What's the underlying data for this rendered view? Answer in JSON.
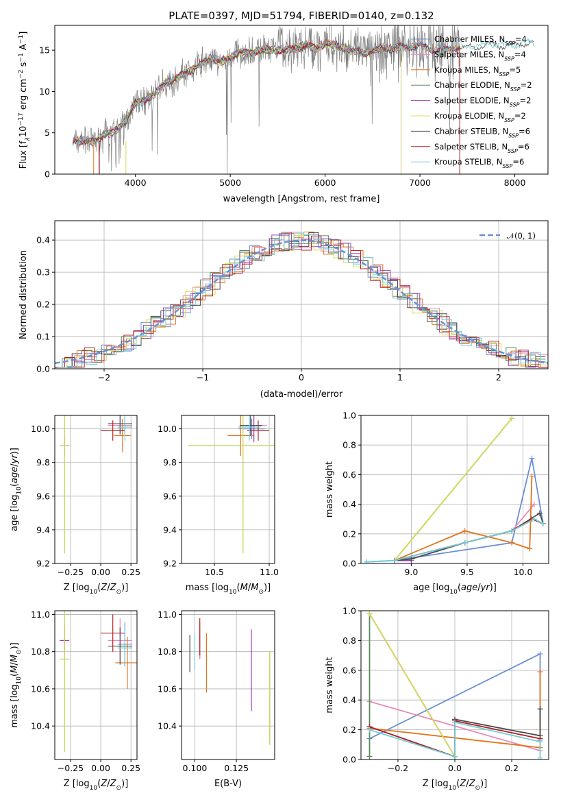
{
  "figure": {
    "title": "PLATE=0397, MJD=51794, FIBERID=0140, z=0.132"
  },
  "colors": {
    "chabrier_miles": "#6a8fd8",
    "salpeter_miles": "#e88ab8",
    "kroupa_miles": "#e0751e",
    "chabrier_elodie": "#5a8a5a",
    "salpeter_elodie": "#9b3fb0",
    "kroupa_elodie": "#d8dc55",
    "chabrier_stelib": "#4a4a4a",
    "salpeter_stelib": "#b22020",
    "kroupa_stelib": "#70cdd8",
    "data": "#808080",
    "normal": "#6a8fd8"
  },
  "chart_data": [
    {
      "type": "line",
      "id": "spectrum",
      "xlabel": "wavelength [Angstrom, rest frame]",
      "ylabel": "Flux [f",
      "ylabel_full": "Flux [fλ10−17 erg cm−2 s−1 A−1]",
      "xlim": [
        3150,
        8350
      ],
      "ylim": [
        0,
        18
      ],
      "xticks": [
        4000,
        5000,
        6000,
        7000,
        8000
      ],
      "yticks": [
        0,
        5,
        10,
        15
      ],
      "continuum": {
        "x": [
          3340,
          3450,
          3550,
          3650,
          3750,
          3850,
          3920,
          4000,
          4100,
          4200,
          4300,
          4400,
          4500,
          4600,
          4700,
          4800,
          4900,
          5000,
          5100,
          5200,
          5300,
          5400,
          5500,
          5600,
          5700,
          5800,
          5900,
          6000,
          6100,
          6200,
          6300,
          6400,
          6500,
          6600,
          6700,
          6800,
          6900,
          7000,
          7100,
          7200,
          7300,
          7400,
          7500,
          7600,
          7700,
          7800,
          7900,
          8000,
          8100,
          8200
        ],
        "y": [
          4.0,
          4.1,
          3.9,
          4.6,
          5.0,
          5.8,
          6.8,
          8.6,
          9.0,
          9.6,
          11.0,
          11.3,
          12.2,
          12.6,
          13.4,
          14.0,
          13.6,
          14.0,
          14.8,
          14.6,
          15.0,
          15.0,
          15.0,
          15.0,
          15.3,
          15.6,
          15.2,
          15.8,
          15.6,
          15.2,
          15.0,
          14.6,
          15.0,
          15.2,
          15.2,
          15.4,
          15.4,
          15.5,
          15.2,
          15.1,
          15.2,
          15.3,
          15.5,
          15.4,
          15.6,
          15.7,
          15.5,
          15.6,
          15.9,
          15.8
        ]
      },
      "model_ends": {
        "chabrier_miles": 7420,
        "salpeter_miles": 7420,
        "kroupa_miles": 7420,
        "chabrier_elodie": 6800,
        "salpeter_elodie": 6800,
        "kroupa_elodie": 6800,
        "chabrier_stelib": 8200,
        "salpeter_stelib": 7420,
        "kroupa_stelib": 8200
      },
      "legend": [
        {
          "key": "chabrier_miles",
          "label": "Chabrier MILES, N",
          "sub": "SSP",
          "suffix": "=4"
        },
        {
          "key": "salpeter_miles",
          "label": "Salpeter MILES, N",
          "sub": "SSP",
          "suffix": "=4"
        },
        {
          "key": "kroupa_miles",
          "label": "Kroupa MILES, N",
          "sub": "SSP",
          "suffix": "=5"
        },
        {
          "key": "chabrier_elodie",
          "label": "Chabrier ELODIE, N",
          "sub": "SSP",
          "suffix": "=2"
        },
        {
          "key": "salpeter_elodie",
          "label": "Salpeter ELODIE, N",
          "sub": "SSP",
          "suffix": "=2"
        },
        {
          "key": "kroupa_elodie",
          "label": "Kroupa ELODIE, N",
          "sub": "SSP",
          "suffix": "=2"
        },
        {
          "key": "chabrier_stelib",
          "label": "Chabrier STELIB, N",
          "sub": "SSP",
          "suffix": "=6"
        },
        {
          "key": "salpeter_stelib",
          "label": "Salpeter STELIB, N",
          "sub": "SSP",
          "suffix": "=6"
        },
        {
          "key": "kroupa_stelib",
          "label": "Kroupa STELIB, N",
          "sub": "SSP",
          "suffix": "=6"
        }
      ],
      "legend_position": "right"
    },
    {
      "type": "histogram",
      "id": "residuals",
      "xlabel": "(data-model)/error",
      "ylabel": "Normed distribution",
      "xlim": [
        -2.5,
        2.5
      ],
      "ylim": [
        0,
        0.46
      ],
      "xticks": [
        -2,
        -1,
        0,
        1,
        2
      ],
      "yticks": [
        0.0,
        0.1,
        0.2,
        0.3,
        0.4
      ],
      "grid": true,
      "bin_width": 0.1,
      "normal_label": "𝒩(0, 1)",
      "legend_position": "top-right"
    },
    {
      "type": "errorbar",
      "id": "age_vs_Z",
      "xlabel": "Z [log",
      "xlabel_full": "Z [log10(Z/Z⊙)]",
      "ylabel_full": "age  [log10(age/yr)]",
      "xlim": [
        -0.38,
        0.3
      ],
      "ylim": [
        9.2,
        10.08
      ],
      "xticks": [
        -0.25,
        0.0,
        0.25
      ],
      "xticklabels": [
        "−0.25",
        "0.00",
        "0.25"
      ],
      "yticks": [
        9.2,
        9.4,
        9.6,
        9.8,
        10.0
      ],
      "points": [
        {
          "key": "chabrier_miles",
          "x": 0.2,
          "y": 10.02,
          "xe": 0.06,
          "ye": 0.05
        },
        {
          "key": "salpeter_miles",
          "x": 0.16,
          "y": 10.02,
          "xe": 0.1,
          "ye": 0.06
        },
        {
          "key": "kroupa_miles",
          "x": 0.18,
          "y": 9.96,
          "xe": 0.07,
          "ye": 0.1
        },
        {
          "key": "chabrier_elodie",
          "x": -0.3,
          "y": 9.9,
          "xe": 0.04,
          "ye": 0.64
        },
        {
          "key": "salpeter_elodie",
          "x": -0.3,
          "y": 9.9,
          "xe": 0.04,
          "ye": 0.06
        },
        {
          "key": "kroupa_elodie",
          "x": -0.3,
          "y": 9.9,
          "xe": 0.04,
          "ye": 0.64
        },
        {
          "key": "chabrier_stelib",
          "x": 0.16,
          "y": 10.03,
          "xe": 0.1,
          "ye": 0.06
        },
        {
          "key": "salpeter_stelib",
          "x": 0.1,
          "y": 9.99,
          "xe": 0.1,
          "ye": 0.06
        },
        {
          "key": "kroupa_stelib",
          "x": 0.2,
          "y": 10.01,
          "xe": 0.06,
          "ye": 0.08
        }
      ]
    },
    {
      "type": "errorbar",
      "id": "age_vs_mass",
      "xlabel_full": "mass [log10(M/M⊙)]",
      "xlim": [
        10.2,
        11.05
      ],
      "ylim": [
        9.2,
        10.08
      ],
      "xticks": [
        10.5,
        11.0
      ],
      "xticklabels": [
        "10.5",
        "11.0"
      ],
      "yticks": [
        9.2,
        9.4,
        9.6,
        9.8,
        10.0
      ],
      "points": [
        {
          "key": "chabrier_miles",
          "x": 10.84,
          "y": 10.0,
          "xe": 0.12,
          "ye": 0.06
        },
        {
          "key": "salpeter_miles",
          "x": 10.86,
          "y": 10.02,
          "xe": 0.12,
          "ye": 0.08
        },
        {
          "key": "kroupa_miles",
          "x": 10.74,
          "y": 9.96,
          "xe": 0.12,
          "ye": 0.12
        },
        {
          "key": "chabrier_elodie",
          "x": 10.76,
          "y": 9.9,
          "xe": 0.5,
          "ye": 0.64
        },
        {
          "key": "salpeter_elodie",
          "x": 10.86,
          "y": 10.02,
          "xe": 0.08,
          "ye": 0.1
        },
        {
          "key": "kroupa_elodie",
          "x": 10.76,
          "y": 9.9,
          "xe": 0.5,
          "ye": 0.64
        },
        {
          "key": "chabrier_stelib",
          "x": 10.83,
          "y": 10.02,
          "xe": 0.1,
          "ye": 0.06
        },
        {
          "key": "salpeter_stelib",
          "x": 10.9,
          "y": 9.99,
          "xe": 0.1,
          "ye": 0.06
        },
        {
          "key": "kroupa_stelib",
          "x": 10.82,
          "y": 10.01,
          "xe": 0.1,
          "ye": 0.08
        }
      ]
    },
    {
      "type": "line",
      "id": "weight_vs_age",
      "xlabel_full": "age  [log10(age/yr)]",
      "ylabel": "mass weight",
      "xlim": [
        8.55,
        10.23
      ],
      "ylim": [
        0,
        1
      ],
      "xticks": [
        9.0,
        9.5,
        10.0
      ],
      "xticklabels": [
        "9.0",
        "9.5",
        "10.0"
      ],
      "yticks": [
        0.0,
        0.2,
        0.4,
        0.6,
        0.8,
        1.0
      ],
      "grid": true,
      "series": [
        {
          "key": "chabrier_miles",
          "x": [
            8.6,
            8.85,
            9.9,
            10.08,
            10.18
          ],
          "y": [
            0.01,
            0.02,
            0.14,
            0.71,
            0.27
          ]
        },
        {
          "key": "salpeter_miles",
          "x": [
            8.85,
            9.9,
            10.1
          ],
          "y": [
            0.02,
            0.22,
            0.4
          ]
        },
        {
          "key": "kroupa_miles",
          "x": [
            8.85,
            9.48,
            9.9,
            10.06,
            10.08
          ],
          "y": [
            0.02,
            0.22,
            0.14,
            0.1,
            0.59
          ]
        },
        {
          "key": "chabrier_elodie",
          "x": [
            8.85,
            9.9
          ],
          "y": [
            0.02,
            0.98
          ]
        },
        {
          "key": "salpeter_elodie",
          "x": [
            8.85,
            9.0
          ],
          "y": [
            0.02,
            0.02
          ]
        },
        {
          "key": "kroupa_elodie",
          "x": [
            8.85,
            9.9
          ],
          "y": [
            0.02,
            0.98
          ]
        },
        {
          "key": "chabrier_stelib",
          "x": [
            8.85,
            9.0,
            9.48,
            9.9,
            10.15,
            10.18
          ],
          "y": [
            0.02,
            0.03,
            0.14,
            0.22,
            0.34,
            0.27
          ]
        },
        {
          "key": "salpeter_stelib",
          "x": [
            8.85,
            9.48,
            9.9,
            10.08,
            10.18
          ],
          "y": [
            0.02,
            0.14,
            0.22,
            0.3,
            0.27
          ]
        },
        {
          "key": "kroupa_stelib",
          "x": [
            8.6,
            8.85,
            9.48,
            9.9,
            10.1,
            10.18
          ],
          "y": [
            0.01,
            0.02,
            0.14,
            0.22,
            0.3,
            0.27
          ]
        }
      ]
    },
    {
      "type": "errorbar",
      "id": "mass_vs_Z",
      "xlabel_full": "Z [log10(Z/Z⊙)]",
      "ylabel_full": "mass [log10(M/M⊙)]",
      "xlim": [
        -0.38,
        0.3
      ],
      "ylim": [
        10.22,
        11.02
      ],
      "xticks": [
        -0.25,
        0.0,
        0.25
      ],
      "xticklabels": [
        "−0.25",
        "0.00",
        "0.25"
      ],
      "yticks": [
        10.4,
        10.6,
        10.8,
        11.0
      ],
      "points": [
        {
          "key": "chabrier_miles",
          "x": 0.2,
          "y": 10.84,
          "xe": 0.06,
          "ye": 0.12
        },
        {
          "key": "salpeter_miles",
          "x": 0.16,
          "y": 10.86,
          "xe": 0.1,
          "ye": 0.12
        },
        {
          "key": "kroupa_miles",
          "x": 0.22,
          "y": 10.74,
          "xe": 0.1,
          "ye": 0.14
        },
        {
          "key": "chabrier_elodie",
          "x": -0.3,
          "y": 10.76,
          "xe": 0.04,
          "ye": 0.5
        },
        {
          "key": "salpeter_elodie",
          "x": -0.3,
          "y": 10.86,
          "xe": 0.04,
          "ye": 0.08
        },
        {
          "key": "kroupa_elodie",
          "x": -0.3,
          "y": 10.76,
          "xe": 0.04,
          "ye": 0.5
        },
        {
          "key": "chabrier_stelib",
          "x": 0.16,
          "y": 10.83,
          "xe": 0.1,
          "ye": 0.1
        },
        {
          "key": "salpeter_stelib",
          "x": 0.1,
          "y": 10.9,
          "xe": 0.1,
          "ye": 0.1
        },
        {
          "key": "kroupa_stelib",
          "x": 0.2,
          "y": 10.82,
          "xe": 0.06,
          "ye": 0.1
        }
      ]
    },
    {
      "type": "errorbar",
      "id": "mass_vs_ebv",
      "xlabel": "E(B-V)",
      "xlim": [
        0.092,
        0.148
      ],
      "ylim": [
        10.22,
        11.02
      ],
      "xticks": [
        0.1,
        0.125
      ],
      "xticklabels": [
        "0.100",
        "0.125"
      ],
      "yticks": [
        10.4,
        10.6,
        10.8,
        11.0
      ],
      "points": [
        {
          "key": "chabrier_miles",
          "x": 0.103,
          "y": 10.84,
          "xe": 0,
          "ye": 0.08
        },
        {
          "key": "salpeter_miles",
          "x": 0.103,
          "y": 10.86,
          "xe": 0,
          "ye": 0.1
        },
        {
          "key": "kroupa_miles",
          "x": 0.107,
          "y": 10.74,
          "xe": 0,
          "ye": 0.16
        },
        {
          "key": "chabrier_elodie",
          "x": 0.145,
          "y": 10.55,
          "xe": 0,
          "ye": 0.25
        },
        {
          "key": "salpeter_elodie",
          "x": 0.134,
          "y": 10.7,
          "xe": 0,
          "ye": 0.22
        },
        {
          "key": "kroupa_elodie",
          "x": 0.145,
          "y": 10.55,
          "xe": 0,
          "ye": 0.25
        },
        {
          "key": "chabrier_stelib",
          "x": 0.097,
          "y": 10.79,
          "xe": 0,
          "ye": 0.1
        },
        {
          "key": "salpeter_stelib",
          "x": 0.103,
          "y": 10.88,
          "xe": 0,
          "ye": 0.1
        },
        {
          "key": "kroupa_stelib",
          "x": 0.1,
          "y": 10.8,
          "xe": 0,
          "ye": 0.1
        }
      ]
    },
    {
      "type": "line",
      "id": "weight_vs_Z",
      "xlabel_full": "Z [log10(Z/Z⊙)]",
      "ylabel": "mass weight",
      "xlim": [
        -0.33,
        0.33
      ],
      "ylim": [
        0,
        1
      ],
      "xticks": [
        -0.2,
        0.0,
        0.2
      ],
      "xticklabels": [
        "−0.2",
        "0.0",
        "0.2"
      ],
      "yticks": [
        0.0,
        0.2,
        0.4,
        0.6,
        0.8,
        1.0
      ],
      "grid": true,
      "series": [
        {
          "key": "chabrier_miles",
          "x": [
            -0.3,
            0.3,
            0.3
          ],
          "y": [
            0.14,
            0.71,
            0.13
          ]
        },
        {
          "key": "salpeter_miles",
          "x": [
            -0.3,
            0.3
          ],
          "y": [
            0.39,
            0.06
          ]
        },
        {
          "key": "kroupa_miles",
          "x": [
            -0.3,
            0.3,
            0.3
          ],
          "y": [
            0.21,
            0.08,
            0.59
          ]
        },
        {
          "key": "chabrier_elodie",
          "x": [
            -0.3,
            -0.3
          ],
          "y": [
            0.02,
            0.98
          ]
        },
        {
          "key": "salpeter_elodie",
          "x": [
            -0.3,
            0.0
          ],
          "y": [
            0.98,
            0.02
          ]
        },
        {
          "key": "kroupa_elodie",
          "x": [
            -0.3,
            0.0
          ],
          "y": [
            0.98,
            0.02
          ]
        },
        {
          "key": "chabrier_stelib",
          "x": [
            -0.3,
            0.0,
            0.0,
            0.3,
            0.3
          ],
          "y": [
            0.22,
            0.02,
            0.27,
            0.16,
            0.34
          ]
        },
        {
          "key": "salpeter_stelib",
          "x": [
            -0.3,
            0.0,
            0.0,
            0.3
          ],
          "y": [
            0.22,
            0.02,
            0.26,
            0.14
          ]
        },
        {
          "key": "kroupa_stelib",
          "x": [
            -0.3,
            0.0,
            0.0,
            0.3,
            0.3
          ],
          "y": [
            0.2,
            0.02,
            0.25,
            0.12,
            0.01
          ]
        }
      ]
    }
  ]
}
